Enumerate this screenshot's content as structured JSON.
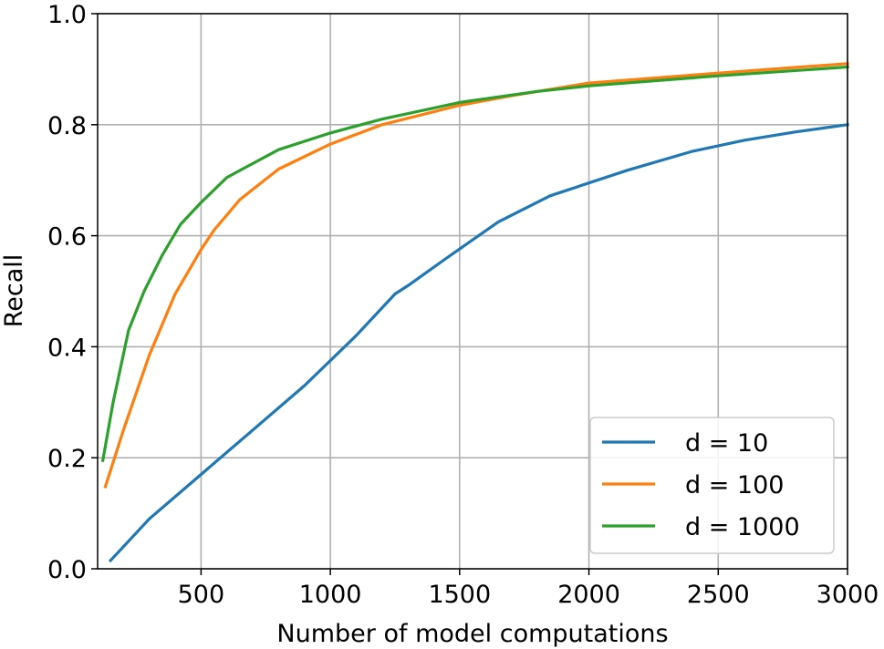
{
  "chart_data": {
    "type": "line",
    "title": "",
    "xlabel": "Number of model computations",
    "ylabel": "Recall",
    "xlim": [
      100,
      3000
    ],
    "ylim": [
      0.0,
      1.0
    ],
    "xticks": [
      500,
      1000,
      1500,
      2000,
      2500,
      3000
    ],
    "xtick_labels": [
      "500",
      "1000",
      "1500",
      "2000",
      "2500",
      "3000"
    ],
    "yticks": [
      0.0,
      0.2,
      0.4,
      0.6,
      0.8,
      1.0
    ],
    "ytick_labels": [
      "0.0",
      "0.2",
      "0.4",
      "0.6",
      "0.8",
      "1.0"
    ],
    "grid": true,
    "legend_position": "lower-right",
    "series": [
      {
        "name": "d = 10",
        "color": "#1f77b4",
        "points": [
          [
            150,
            0.015
          ],
          [
            300,
            0.09
          ],
          [
            500,
            0.17
          ],
          [
            700,
            0.25
          ],
          [
            900,
            0.33
          ],
          [
            1100,
            0.42
          ],
          [
            1250,
            0.495
          ],
          [
            1300,
            0.51
          ],
          [
            1450,
            0.56
          ],
          [
            1650,
            0.625
          ],
          [
            1850,
            0.672
          ],
          [
            2150,
            0.718
          ],
          [
            2400,
            0.752
          ],
          [
            2600,
            0.772
          ],
          [
            2800,
            0.787
          ],
          [
            3000,
            0.8
          ]
        ]
      },
      {
        "name": "d = 100",
        "color": "#ff7f0e",
        "points": [
          [
            130,
            0.148
          ],
          [
            200,
            0.25
          ],
          [
            300,
            0.385
          ],
          [
            400,
            0.495
          ],
          [
            500,
            0.575
          ],
          [
            550,
            0.61
          ],
          [
            650,
            0.665
          ],
          [
            800,
            0.72
          ],
          [
            1000,
            0.765
          ],
          [
            1200,
            0.8
          ],
          [
            1500,
            0.835
          ],
          [
            1700,
            0.852
          ],
          [
            2000,
            0.875
          ],
          [
            2500,
            0.893
          ],
          [
            3000,
            0.91
          ]
        ]
      },
      {
        "name": "d = 1000",
        "color": "#2ca02c",
        "points": [
          [
            120,
            0.195
          ],
          [
            160,
            0.3
          ],
          [
            220,
            0.43
          ],
          [
            280,
            0.5
          ],
          [
            350,
            0.565
          ],
          [
            420,
            0.62
          ],
          [
            500,
            0.66
          ],
          [
            600,
            0.705
          ],
          [
            700,
            0.73
          ],
          [
            800,
            0.755
          ],
          [
            1000,
            0.785
          ],
          [
            1200,
            0.81
          ],
          [
            1500,
            0.84
          ],
          [
            1800,
            0.86
          ],
          [
            2000,
            0.87
          ],
          [
            2500,
            0.888
          ],
          [
            3000,
            0.904
          ]
        ]
      }
    ]
  }
}
